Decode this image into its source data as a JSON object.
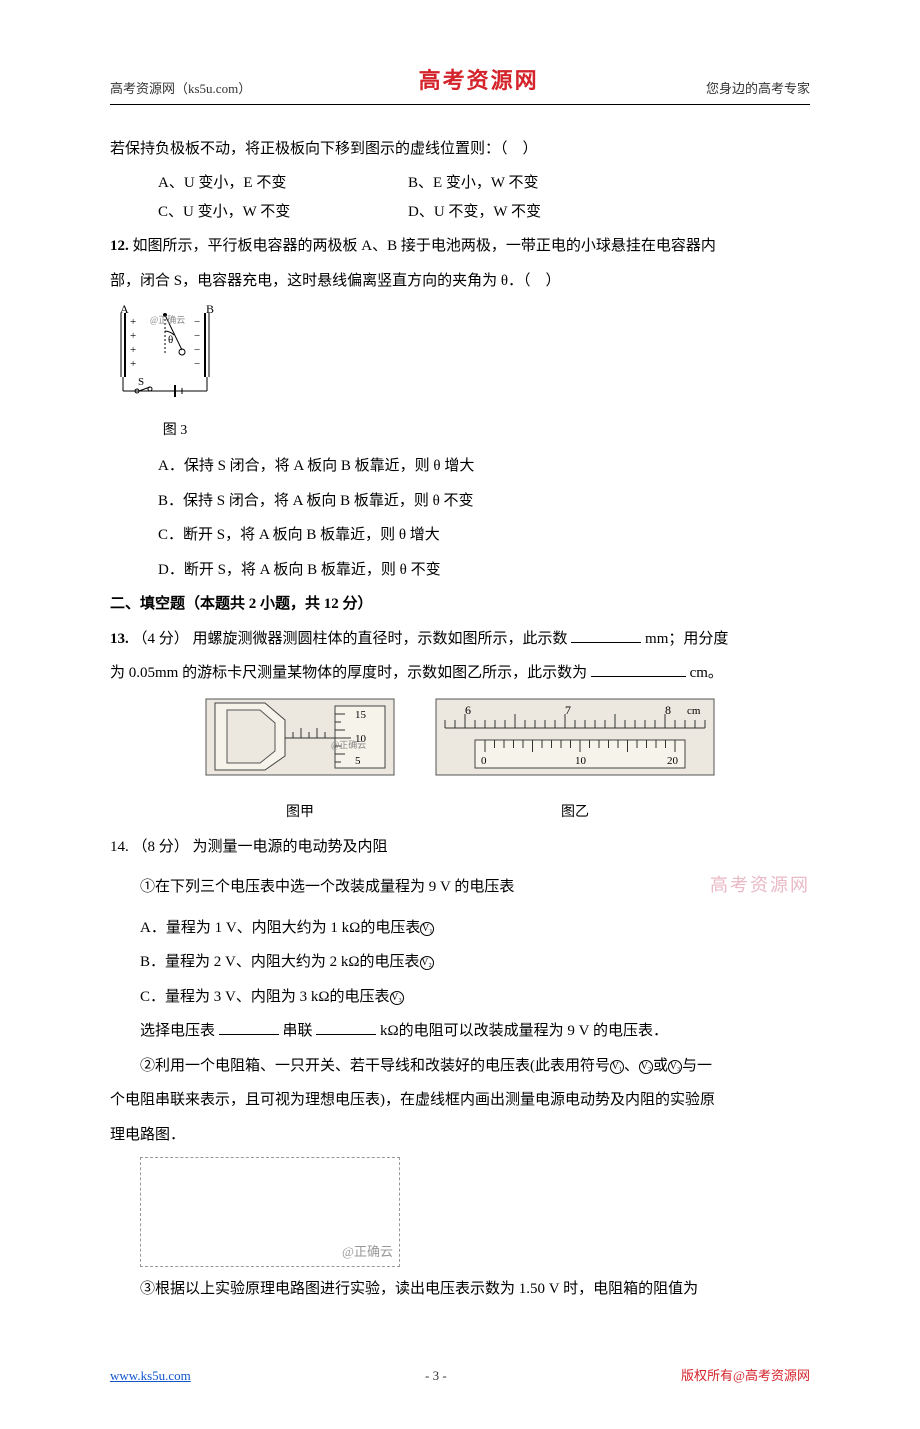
{
  "header": {
    "left": "高考资源网（ks5u.com）",
    "center": "高考资源网",
    "right": "您身边的高考专家"
  },
  "q11": {
    "stem": "若保持负极板不动，将正极板向下移到图示的虚线位置则：（　）",
    "A": "A、U 变小，E 不变",
    "B": "B、E 变小，W 不变",
    "C": "C、U 变小，W 不变",
    "D": "D、U 不变，W 不变"
  },
  "q12": {
    "num": "12.",
    "stem1": "如图所示，平行板电容器的两极板 A、B 接于电池两极，一带正电的小球悬挂在电容器内",
    "stem2": "部，闭合 S，电容器充电，这时悬线偏离竖直方向的夹角为 θ．（　）",
    "fig": {
      "labelA": "A",
      "labelB": "B",
      "labelS": "S",
      "theta": "θ",
      "caption": "图  3",
      "mark": "@正确云"
    },
    "A": "A．保持 S 闭合，将 A 板向 B 板靠近，则 θ 增大",
    "B": "B．保持 S 闭合，将 A 板向 B 板靠近，则 θ 不变",
    "C": "C．断开 S，将 A 板向 B 板靠近，则 θ 增大",
    "D": "D．断开 S，将 A 板向 B 板靠近，则 θ 不变"
  },
  "section2": "二、填空题（本题共 2 小题，共 12 分）",
  "q13": {
    "num": "13.",
    "score": "（4 分）",
    "line1a": "用螺旋测微器测圆柱体的直径时，示数如图所示，此示数",
    "line1b": "mm；用分度",
    "line2a": "为 0.05mm 的游标卡尺测量某物体的厚度时，示数如图乙所示，此示数为",
    "line2b": "cm。",
    "figA": {
      "top_scale_label": "15",
      "mid_scale_label": "10",
      "bot_scale_label": "5",
      "mark": "@正确云",
      "caption": "图甲"
    },
    "figB": {
      "main_ticks": [
        "6",
        "7",
        "8"
      ],
      "main_unit": "cm",
      "vernier_ticks": [
        "0",
        "10",
        "20"
      ],
      "caption": "图乙"
    }
  },
  "q14": {
    "num": "14.",
    "score": "（8 分）",
    "title": "为测量一电源的电动势及内阻",
    "p1": "①在下列三个电压表中选一个改装成量程为 9 V 的电压表",
    "A": "A．量程为 1 V、内阻大约为 1 kΩ的电压表",
    "B": "B．量程为 2 V、内阻大约为 2 kΩ的电压表",
    "C": "C．量程为 3 V、内阻为 3 kΩ的电压表",
    "v1": "V₁",
    "v2": "V₂",
    "v3": "V₃",
    "select_a": "选择电压表",
    "select_b": "串联",
    "select_c": "kΩ的电阻可以改装成量程为 9 V 的电压表．",
    "p2a": "②利用一个电阻箱、一只开关、若干导线和改装好的电压表(此表用符号",
    "p2b": "、",
    "p2c": "或",
    "p2d": "与一",
    "p2e": "个电阻串联来表示，且可视为理想电压表)，在虚线框内画出测量电源电动势及内阻的实验原",
    "p2f": "理电路图．",
    "box_label": "@正确云",
    "p3": "③根据以上实验原理电路图进行实验，读出电压表示数为 1.50 V 时，电阻箱的阻值为",
    "watermark": "高考资源网"
  },
  "footer": {
    "left": "www.ks5u.com",
    "center": "- 3 -",
    "right": "版权所有@高考资源网"
  },
  "colors": {
    "brand_red": "#d4232b",
    "link_blue": "#1155cc",
    "watermark_pink": "#e9b9c5",
    "gray": "#999999",
    "text": "#000000"
  }
}
